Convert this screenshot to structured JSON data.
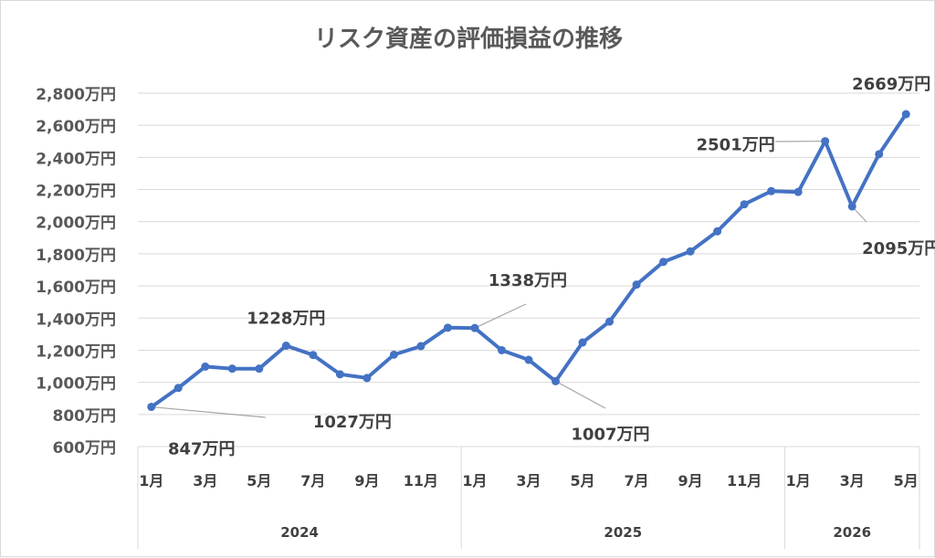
{
  "chart_data": {
    "type": "line",
    "title": "リスク資産の評価損益の推移",
    "y_ticks": [
      "600万円",
      "800万円",
      "1,000万円",
      "1,200万円",
      "1,400万円",
      "1,600万円",
      "1,800万円",
      "2,000万円",
      "2,200万円",
      "2,400万円",
      "2,600万円",
      "2,800万円"
    ],
    "ylim": [
      600,
      2800
    ],
    "grid": true,
    "x_labels": [
      "1月",
      "",
      "3月",
      "",
      "5月",
      "",
      "7月",
      "",
      "9月",
      "",
      "11月",
      "",
      "1月",
      "",
      "3月",
      "",
      "5月",
      "",
      "7月",
      "",
      "9月",
      "",
      "11月",
      "",
      "1月",
      "",
      "3月",
      "",
      "5月"
    ],
    "years": [
      {
        "label": "2024",
        "start": 0,
        "count": 12
      },
      {
        "label": "2025",
        "start": 12,
        "count": 12
      },
      {
        "label": "2026",
        "start": 24,
        "count": 5
      }
    ],
    "colors": {
      "line": "#4472c4",
      "grid": "#d9d9d9",
      "leader": "#a6a6a6"
    },
    "series": [
      {
        "values": [
          847,
          965,
          1098,
          1085,
          1085,
          1228,
          1170,
          1050,
          1027,
          1172,
          1225,
          1340,
          1338,
          1200,
          1140,
          1007,
          1248,
          1378,
          1608,
          1750,
          1815,
          1940,
          2108,
          2190,
          2185,
          2501,
          2095,
          2420,
          2669
        ]
      }
    ],
    "data_labels": [
      {
        "index": 0,
        "text": "847万円",
        "position": "below-right"
      },
      {
        "index": 5,
        "text": "1228万円",
        "position": "above"
      },
      {
        "index": 8,
        "text": "1027万円",
        "position": "below"
      },
      {
        "index": 12,
        "text": "1338万円",
        "position": "upper-right"
      },
      {
        "index": 15,
        "text": "1007万円",
        "position": "below-right"
      },
      {
        "index": 25,
        "text": "2501万円",
        "position": "left"
      },
      {
        "index": 26,
        "text": "2095万円",
        "position": "below"
      },
      {
        "index": 28,
        "text": "2669万円",
        "position": "above"
      }
    ]
  }
}
